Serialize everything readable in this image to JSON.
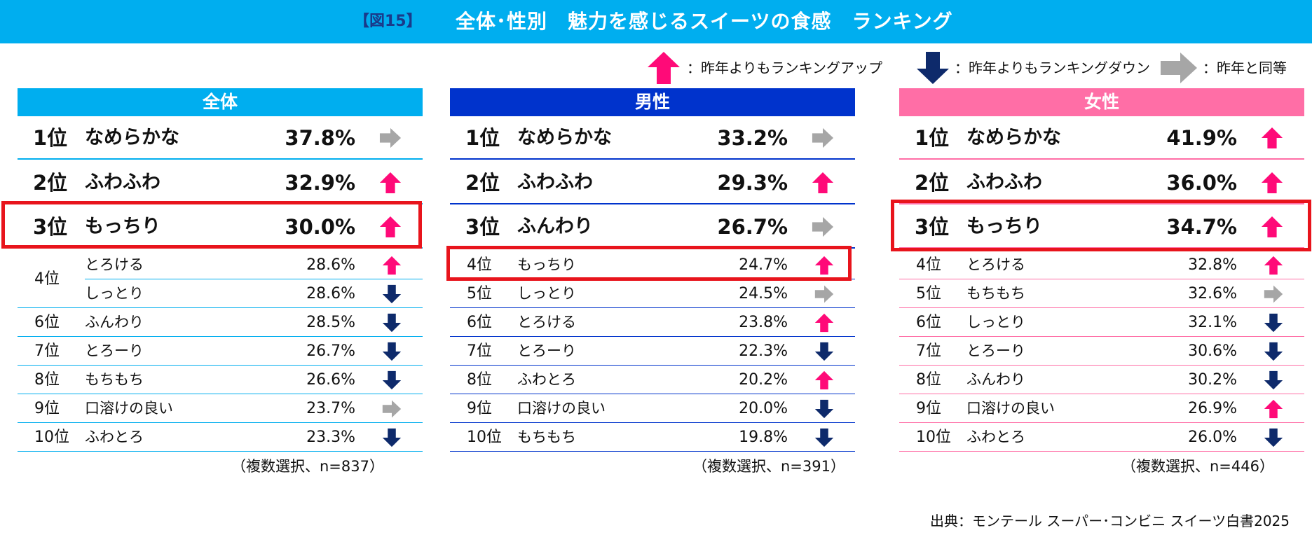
{
  "title": {
    "figure_label": "【図15】",
    "text": "全体･性別　魅力を感じるスイーツの食感　ランキング"
  },
  "legend": {
    "up": "：昨年よりもランキングアップ",
    "down": "：昨年よりもランキングダウン",
    "same": "：昨年と同等"
  },
  "colors": {
    "up": "#ff0a78",
    "down": "#0e2a6b",
    "same": "#a6a6a6",
    "header_all": "#00aeef",
    "header_male": "#0033cc",
    "header_female": "#ff6ea6",
    "highlight": "#e8141c"
  },
  "chart_data": [
    {
      "type": "table",
      "header": "全体",
      "note": "（複数選択、n=837）",
      "rows": [
        {
          "rank": "1位",
          "label": "なめらかな",
          "value": "37.8%",
          "trend": "same"
        },
        {
          "rank": "2位",
          "label": "ふわふわ",
          "value": "32.9%",
          "trend": "up"
        },
        {
          "rank": "3位",
          "label": "もっちり",
          "value": "30.0%",
          "trend": "up"
        },
        {
          "rank": "4位",
          "label": "とろける",
          "value": "28.6%",
          "trend": "up"
        },
        {
          "rank": "",
          "label": "しっとり",
          "value": "28.6%",
          "trend": "down"
        },
        {
          "rank": "6位",
          "label": "ふんわり",
          "value": "28.5%",
          "trend": "down"
        },
        {
          "rank": "7位",
          "label": "とろーり",
          "value": "26.7%",
          "trend": "down"
        },
        {
          "rank": "8位",
          "label": "もちもち",
          "value": "26.6%",
          "trend": "down"
        },
        {
          "rank": "9位",
          "label": "口溶けの良い",
          "value": "23.7%",
          "trend": "same"
        },
        {
          "rank": "10位",
          "label": "ふわとろ",
          "value": "23.3%",
          "trend": "down"
        }
      ]
    },
    {
      "type": "table",
      "header": "男性",
      "note": "（複数選択、n=391）",
      "rows": [
        {
          "rank": "1位",
          "label": "なめらかな",
          "value": "33.2%",
          "trend": "same"
        },
        {
          "rank": "2位",
          "label": "ふわふわ",
          "value": "29.3%",
          "trend": "up"
        },
        {
          "rank": "3位",
          "label": "ふんわり",
          "value": "26.7%",
          "trend": "same"
        },
        {
          "rank": "4位",
          "label": "もっちり",
          "value": "24.7%",
          "trend": "up"
        },
        {
          "rank": "5位",
          "label": "しっとり",
          "value": "24.5%",
          "trend": "same"
        },
        {
          "rank": "6位",
          "label": "とろける",
          "value": "23.8%",
          "trend": "up"
        },
        {
          "rank": "7位",
          "label": "とろーり",
          "value": "22.3%",
          "trend": "down"
        },
        {
          "rank": "8位",
          "label": "ふわとろ",
          "value": "20.2%",
          "trend": "up"
        },
        {
          "rank": "9位",
          "label": "口溶けの良い",
          "value": "20.0%",
          "trend": "down"
        },
        {
          "rank": "10位",
          "label": "もちもち",
          "value": "19.8%",
          "trend": "down"
        }
      ]
    },
    {
      "type": "table",
      "header": "女性",
      "note": "（複数選択、n=446）",
      "rows": [
        {
          "rank": "1位",
          "label": "なめらかな",
          "value": "41.9%",
          "trend": "up"
        },
        {
          "rank": "2位",
          "label": "ふわふわ",
          "value": "36.0%",
          "trend": "up"
        },
        {
          "rank": "3位",
          "label": "もっちり",
          "value": "34.7%",
          "trend": "up"
        },
        {
          "rank": "4位",
          "label": "とろける",
          "value": "32.8%",
          "trend": "up"
        },
        {
          "rank": "5位",
          "label": "もちもち",
          "value": "32.6%",
          "trend": "same"
        },
        {
          "rank": "6位",
          "label": "しっとり",
          "value": "32.1%",
          "trend": "down"
        },
        {
          "rank": "7位",
          "label": "とろーり",
          "value": "30.6%",
          "trend": "down"
        },
        {
          "rank": "8位",
          "label": "ふんわり",
          "value": "30.2%",
          "trend": "down"
        },
        {
          "rank": "9位",
          "label": "口溶けの良い",
          "value": "26.9%",
          "trend": "up"
        },
        {
          "rank": "10位",
          "label": "ふわとろ",
          "value": "26.0%",
          "trend": "down"
        }
      ]
    }
  ],
  "source": "出典：モンテール スーパー･コンビニ スイーツ白書2025"
}
